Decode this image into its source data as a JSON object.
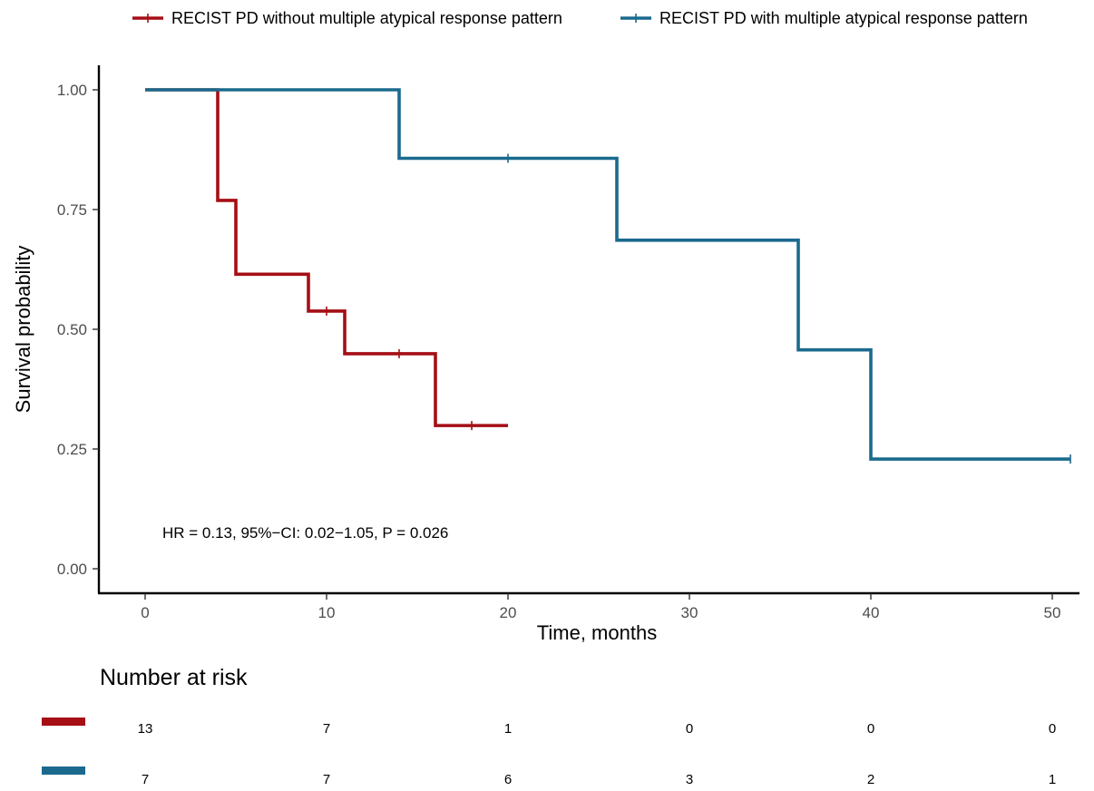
{
  "colors": {
    "without": "#a50f15",
    "with": "#1b6a8e"
  },
  "chart_data": {
    "type": "line",
    "subtype": "kaplan-meier step",
    "title": "",
    "xlabel": "Time, months",
    "ylabel": "Survival probability",
    "xlim": [
      -2.5,
      51.5
    ],
    "ylim": [
      -0.05,
      1.05
    ],
    "x_ticks": [
      0,
      10,
      20,
      30,
      40,
      50
    ],
    "y_ticks": [
      0,
      0.25,
      0.5,
      0.75,
      1.0
    ],
    "x_tick_labels": [
      "0",
      "10",
      "20",
      "30",
      "40",
      "50"
    ],
    "y_tick_labels": [
      "0.00",
      "0.25",
      "0.50",
      "0.75",
      "1.00"
    ],
    "legend_position": "top",
    "grid": false,
    "series": [
      {
        "name": "RECIST PD without multiple atypical response pattern",
        "color_key": "without",
        "x": [
          0,
          4,
          5,
          9,
          11,
          16,
          20
        ],
        "y": [
          1.0,
          0.769,
          0.615,
          0.538,
          0.449,
          0.299,
          0.299
        ],
        "censor_times": [
          10,
          14,
          18
        ]
      },
      {
        "name": "RECIST PD with multiple atypical response pattern",
        "color_key": "with",
        "x": [
          0,
          14,
          26,
          36,
          40,
          51
        ],
        "y": [
          1.0,
          0.857,
          0.686,
          0.457,
          0.229,
          0.229
        ],
        "censor_times": [
          20,
          51
        ]
      }
    ],
    "annotation": "HR = 0.13, 95%−CI: 0.02−1.05, P = 0.026",
    "risk_table": {
      "title": "Number at risk",
      "times": [
        0,
        10,
        20,
        30,
        40,
        50
      ],
      "rows": [
        {
          "color_key": "without",
          "values": [
            "13",
            "7",
            "1",
            "0",
            "0",
            "0"
          ]
        },
        {
          "color_key": "with",
          "values": [
            "7",
            "7",
            "6",
            "3",
            "2",
            "1"
          ]
        }
      ]
    }
  }
}
